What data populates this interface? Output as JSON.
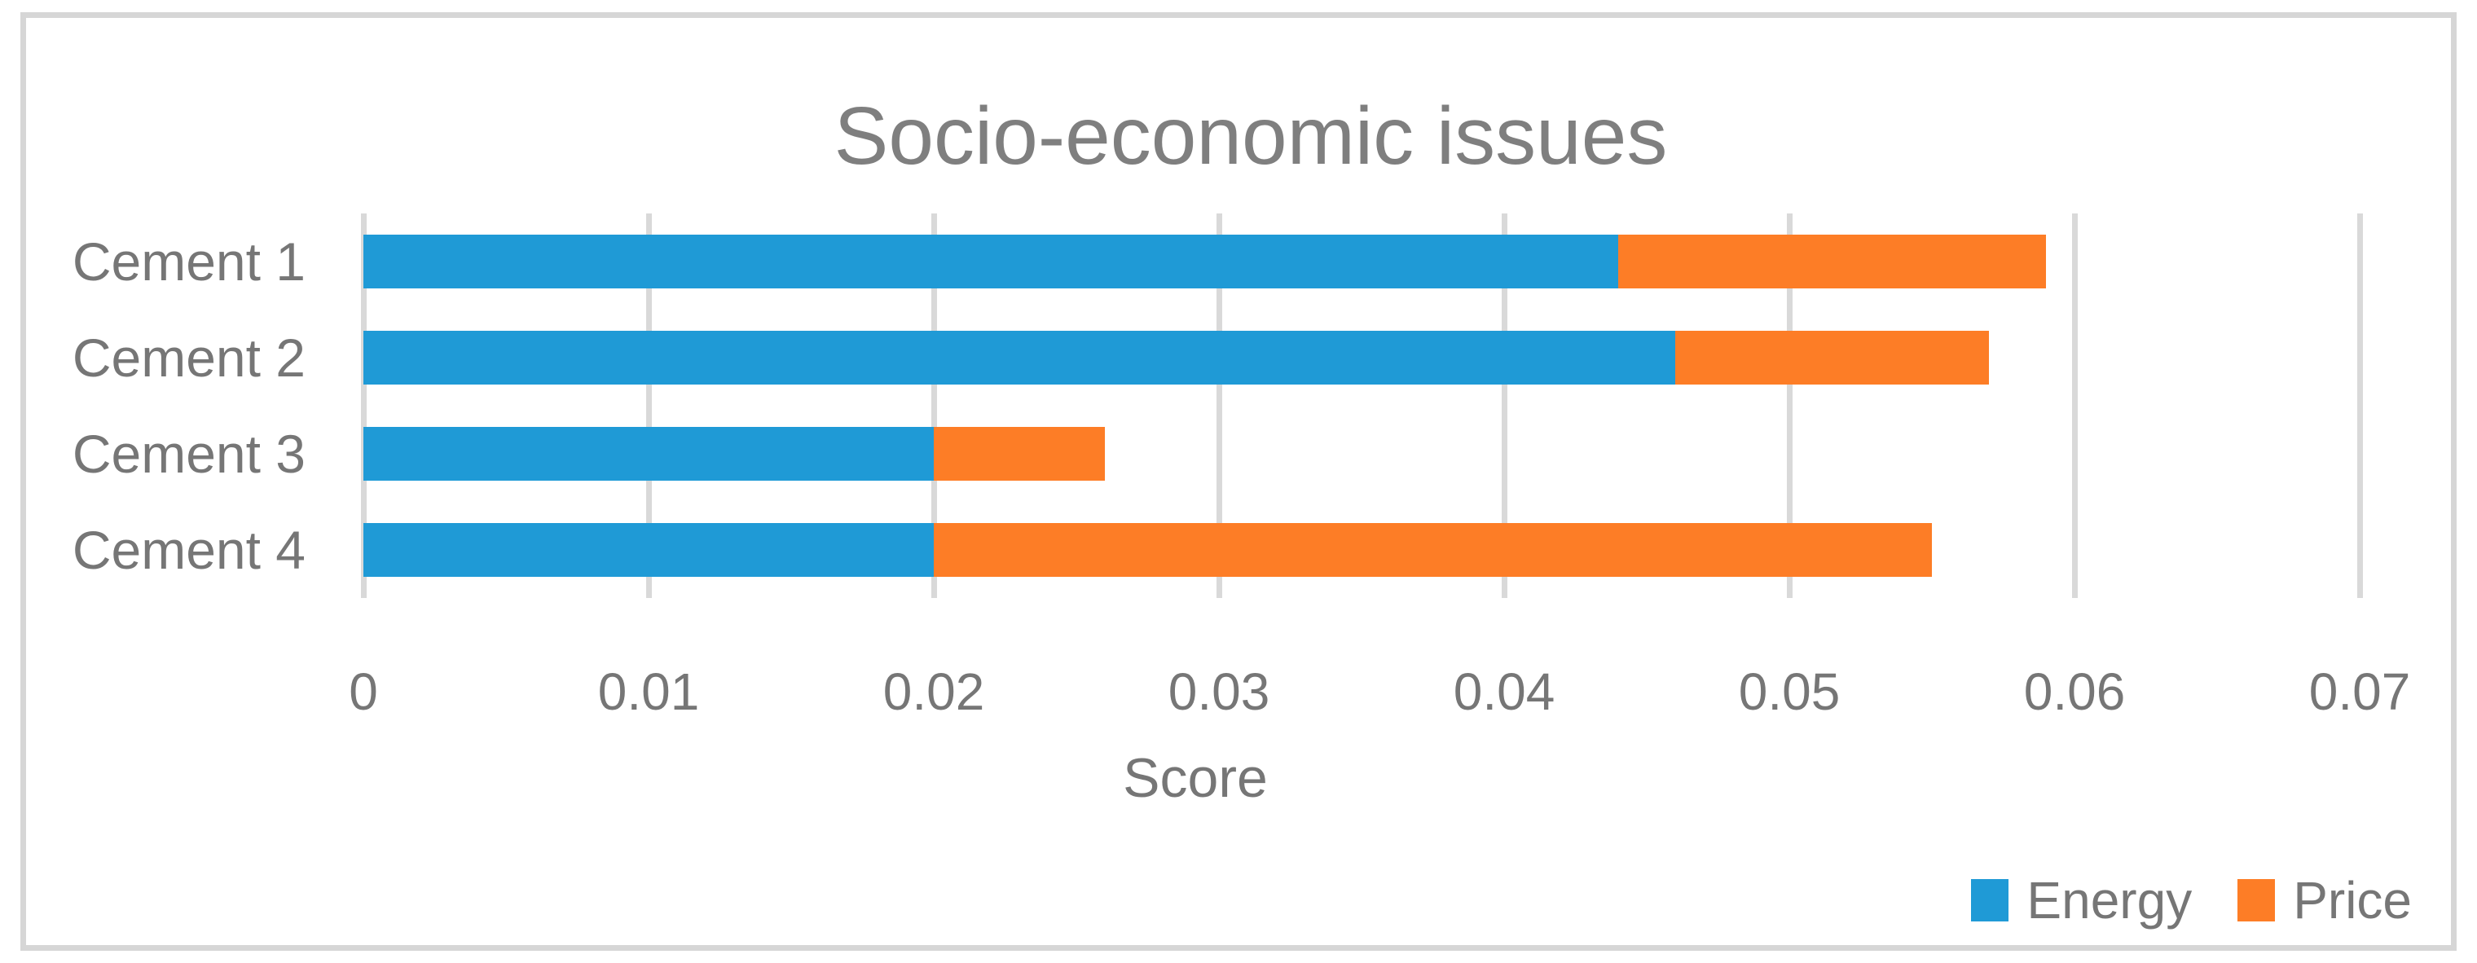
{
  "chart_data": {
    "type": "bar",
    "orientation": "horizontal",
    "stacked": true,
    "title": "Socio-economic issues",
    "xlabel": "Score",
    "categories": [
      "Cement 1",
      "Cement 2",
      "Cement 3",
      "Cement 4"
    ],
    "series": [
      {
        "name": "Energy",
        "color": "#1F9AD6",
        "values": [
          0.044,
          0.046,
          0.02,
          0.02
        ]
      },
      {
        "name": "Price",
        "color": "#FD7D26",
        "values": [
          0.015,
          0.011,
          0.006,
          0.035
        ]
      }
    ],
    "totals": [
      0.059,
      0.057,
      0.026,
      0.055
    ],
    "xlim": [
      0,
      0.07
    ],
    "xticks": [
      0,
      0.01,
      0.02,
      0.03,
      0.04,
      0.05,
      0.06,
      0.07
    ],
    "xtick_labels": [
      "0",
      "0.01",
      "0.02",
      "0.03",
      "0.04",
      "0.05",
      "0.06",
      "0.07"
    ],
    "grid": true,
    "legend_position": "bottom-right",
    "colors": {
      "energy": "#1F9AD6",
      "price": "#FD7D26",
      "gridline": "#D9D9D9",
      "frame_border": "#D6D6D6",
      "axis_text": "#767676",
      "title_text": "#7F7F7F",
      "background": "#FFFFFF"
    }
  }
}
